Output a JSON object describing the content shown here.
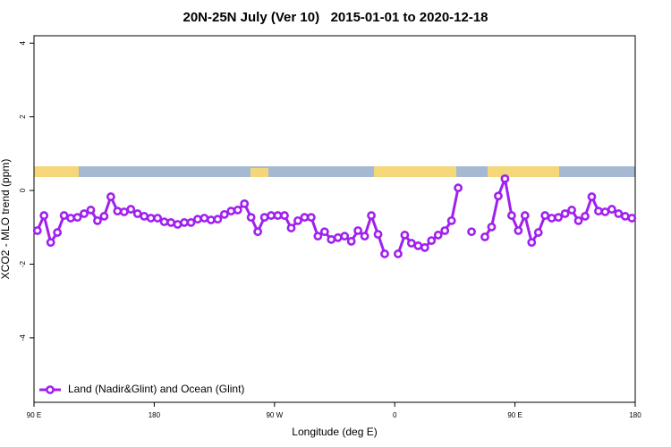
{
  "chart_data": {
    "type": "line",
    "title": "20N-25N July (Ver 10)   2015-01-01 to 2020-12-18",
    "x_label": "Longitude (deg E)",
    "y_label": "XCO2 - MLO trend (ppm)",
    "xlim": [
      90,
      540
    ],
    "ylim": [
      -5.75,
      4.2
    ],
    "xticks": [
      {
        "value": 90,
        "label": "90 E"
      },
      180,
      {
        "value": 270,
        "label": "90 W"
      },
      {
        "value": 360,
        "label": "0"
      },
      {
        "value": 450,
        "label": "90 E"
      },
      {
        "value": 540,
        "label": "180"
      }
    ],
    "yticks": [
      -4,
      -2,
      0,
      2,
      4
    ],
    "legend": "bottom-left",
    "x": [
      92.5,
      97.5,
      102.5,
      107.5,
      112.5,
      117.5,
      122.5,
      127.5,
      132.5,
      137.5,
      142.5,
      147.5,
      152.5,
      157.5,
      162.5,
      167.5,
      172.5,
      177.5,
      182.5,
      187.5,
      192.5,
      197.5,
      202.5,
      207.5,
      212.5,
      217.5,
      222.5,
      227.5,
      232.5,
      237.5,
      242.5,
      247.5,
      252.5,
      257.5,
      262.5,
      267.5,
      272.5,
      277.5,
      282.5,
      287.5,
      292.5,
      297.5,
      302.5,
      307.5,
      312.5,
      317.5,
      322.5,
      327.5,
      332.5,
      337.5,
      342.5,
      347.5,
      352.5,
      357.5,
      362.5,
      367.5,
      372.5,
      377.5,
      382.5,
      387.5,
      392.5,
      397.5,
      402.5,
      407.5,
      412.5,
      417.5,
      422.5,
      427.5,
      432.5,
      437.5,
      442.5,
      447.5,
      452.5,
      457.5,
      462.5,
      467.5,
      472.5,
      477.5,
      482.5,
      487.5,
      492.5,
      497.5,
      502.5,
      507.5,
      512.5,
      517.5,
      522.5,
      527.5,
      532.5,
      537.5
    ],
    "series": [
      {
        "name": "Land (Nadir&Glint) and Ocean (Glint)",
        "color": "#a020f0",
        "values": [
          -1.09,
          -0.68,
          -1.41,
          -1.14,
          -0.68,
          -0.75,
          -0.73,
          -0.63,
          -0.53,
          -0.82,
          -0.7,
          -0.17,
          -0.56,
          -0.58,
          -0.51,
          -0.63,
          -0.7,
          -0.75,
          -0.75,
          -0.85,
          -0.87,
          -0.92,
          -0.87,
          -0.87,
          -0.78,
          -0.75,
          -0.8,
          -0.78,
          -0.65,
          -0.56,
          -0.53,
          -0.36,
          -0.73,
          -1.12,
          -0.73,
          -0.68,
          -0.68,
          -0.68,
          -1.02,
          -0.82,
          -0.73,
          -0.73,
          -1.24,
          -1.12,
          -1.33,
          -1.28,
          -1.24,
          -1.38,
          -1.09,
          -1.24,
          -0.68,
          -1.19,
          -1.72,
          null,
          -1.72,
          -1.21,
          -1.43,
          -1.5,
          -1.55,
          -1.36,
          -1.21,
          -1.09,
          -0.82,
          0.07,
          null,
          -1.12,
          null,
          -1.26,
          -0.99,
          -0.15,
          0.32,
          -0.68,
          -1.09,
          -0.68,
          -1.41,
          -1.14,
          -0.68,
          -0.75,
          -0.73,
          -0.63,
          -0.53,
          -0.82,
          -0.7,
          -0.17,
          -0.56,
          -0.58,
          -0.51,
          -0.63,
          -0.7,
          -0.75
        ]
      }
    ]
  }
}
